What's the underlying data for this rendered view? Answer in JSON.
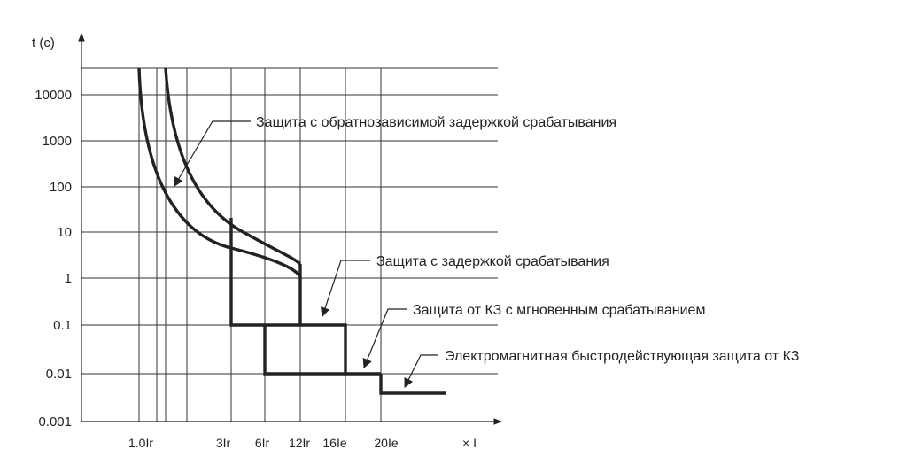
{
  "axes": {
    "y_title": "t (c)",
    "x_title": "× I",
    "y_ticks": [
      "10000",
      "1000",
      "100",
      "10",
      "1",
      "0.1",
      "0.01",
      "0.001"
    ],
    "x_ticks": [
      "1.0Ir",
      "3Ir",
      "6Ir",
      "12Ir",
      "16Ie",
      "20Ie"
    ]
  },
  "annotations": {
    "inverse_time": "Защита с обратнозависимой задержкой срабатывания",
    "short_delay": "Защита с задержкой срабатывания",
    "instantaneous": "Защита от КЗ с мгновенным срабатыванием",
    "electromagnetic": "Электромагнитная быстродействующая защита от КЗ"
  }
}
